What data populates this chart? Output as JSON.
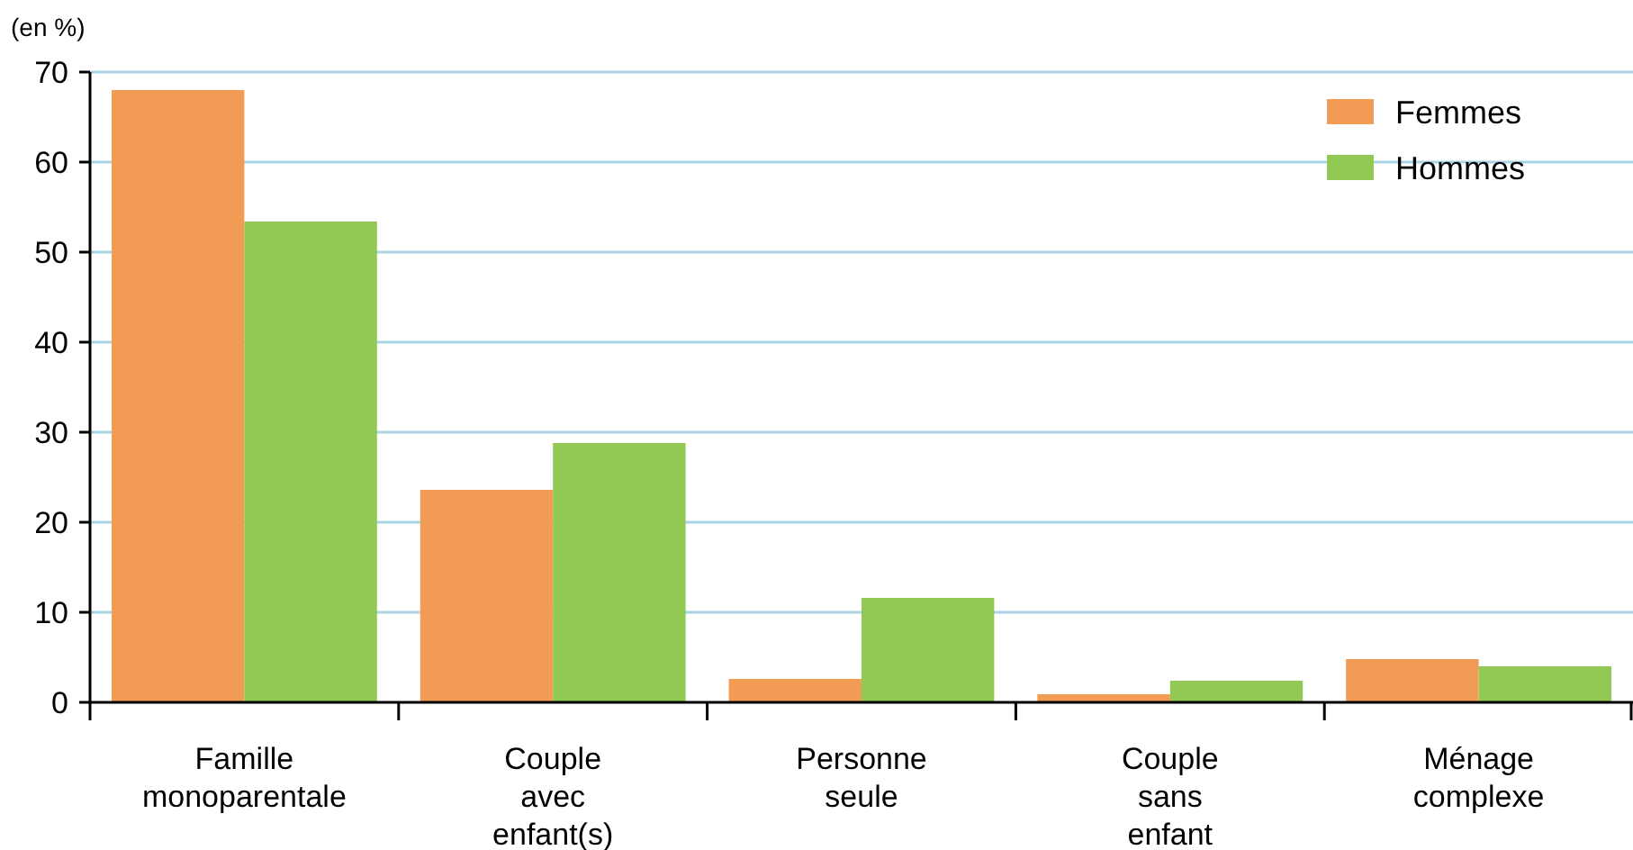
{
  "chart_data": {
    "type": "bar",
    "ylabel": "(en %)",
    "categories": [
      "Famille monoparentale",
      "Couple avec enfant(s)",
      "Personne seule",
      "Couple sans enfant",
      "Ménage complexe"
    ],
    "series": [
      {
        "name": "Femmes",
        "color": "#f29b54",
        "values": [
          68,
          23.6,
          2.6,
          0.9,
          4.8
        ]
      },
      {
        "name": "Hommes",
        "color": "#92c954",
        "values": [
          53.4,
          28.8,
          11.6,
          2.4,
          4
        ]
      }
    ],
    "ylim": [
      0,
      70
    ],
    "yticks": [
      0,
      10,
      20,
      30,
      40,
      50,
      60,
      70
    ],
    "grid": "y",
    "legend": "top right"
  }
}
